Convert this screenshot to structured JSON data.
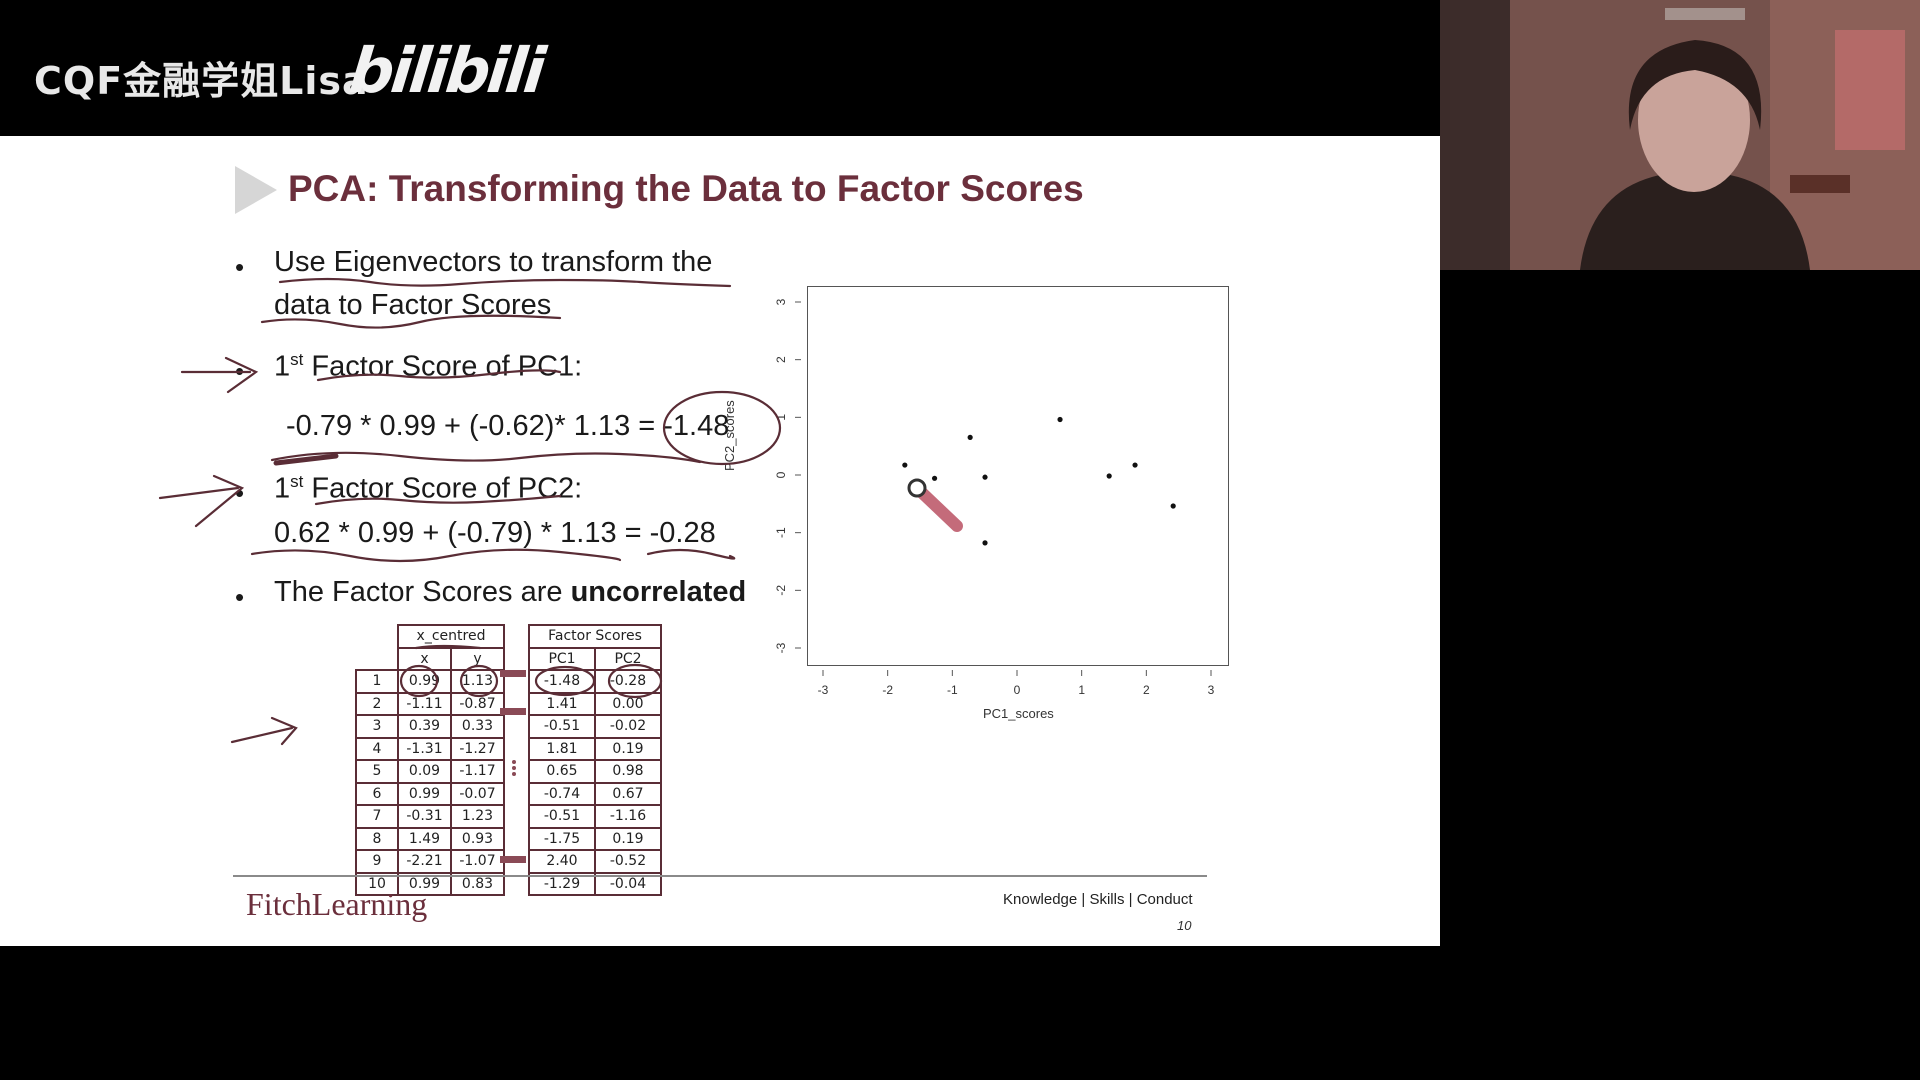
{
  "overlay": {
    "channel": "CQF金融学姐Lisa",
    "brand": "bilibili"
  },
  "slide": {
    "title": "PCA: Transforming the Data to Factor Scores",
    "bullets": [
      {
        "text": "Use Eigenvectors to transform the",
        "text2": "data to Factor Scores"
      },
      {
        "pre": "1",
        "sup": "st",
        "post": " Factor Score of PC1:",
        "formula": "-0.79 * 0.99 + (-0.62)* 1.13 = -1.48"
      },
      {
        "pre": "1",
        "sup": "st",
        "post": " Factor Score of PC2:",
        "formula": "0.62 * 0.99 + (-0.79) * 1.13 = -0.28"
      },
      {
        "plain": "The Factor Scores are ",
        "bold": "uncorrelated"
      }
    ],
    "table_centred": {
      "header": "x_centred",
      "columns": [
        "x",
        "y"
      ],
      "row_ids": [
        "1",
        "2",
        "3",
        "4",
        "5",
        "6",
        "7",
        "8",
        "9",
        "10"
      ],
      "rows": [
        [
          "0.99",
          "1.13"
        ],
        [
          "-1.11",
          "-0.87"
        ],
        [
          "0.39",
          "0.33"
        ],
        [
          "-1.31",
          "-1.27"
        ],
        [
          "0.09",
          "-1.17"
        ],
        [
          "0.99",
          "-0.07"
        ],
        [
          "-0.31",
          "1.23"
        ],
        [
          "1.49",
          "0.93"
        ],
        [
          "-2.21",
          "-1.07"
        ],
        [
          "0.99",
          "0.83"
        ]
      ]
    },
    "table_scores": {
      "header": "Factor Scores",
      "columns": [
        "PC1",
        "PC2"
      ],
      "rows": [
        [
          "-1.48",
          "-0.28"
        ],
        [
          "1.41",
          "0.00"
        ],
        [
          "-0.51",
          "-0.02"
        ],
        [
          "1.81",
          "0.19"
        ],
        [
          "0.65",
          "0.98"
        ],
        [
          "-0.74",
          "0.67"
        ],
        [
          "-0.51",
          "-1.16"
        ],
        [
          "-1.75",
          "0.19"
        ],
        [
          "2.40",
          "-0.52"
        ],
        [
          "-1.29",
          "-0.04"
        ]
      ]
    },
    "footer": {
      "logo": "FitchLearning",
      "tagline": "Knowledge | Skills | Conduct",
      "page": "10"
    }
  },
  "chart_data": {
    "type": "scatter",
    "xlabel": "PC1_scores",
    "ylabel": "PC2_scores",
    "xlim": [
      -3,
      3
    ],
    "ylim": [
      -3,
      3
    ],
    "xticks": [
      "-3",
      "-2",
      "-1",
      "0",
      "1",
      "2",
      "3"
    ],
    "yticks": [
      "-3",
      "-2",
      "-1",
      "0",
      "1",
      "2",
      "3"
    ],
    "x": [
      -1.48,
      1.41,
      -0.51,
      1.81,
      0.65,
      -0.74,
      -0.51,
      -1.75,
      2.4,
      -1.29
    ],
    "y": [
      -0.28,
      0.0,
      -0.02,
      0.19,
      0.98,
      0.67,
      -1.16,
      0.19,
      -0.52,
      -0.04
    ],
    "grid": false
  }
}
